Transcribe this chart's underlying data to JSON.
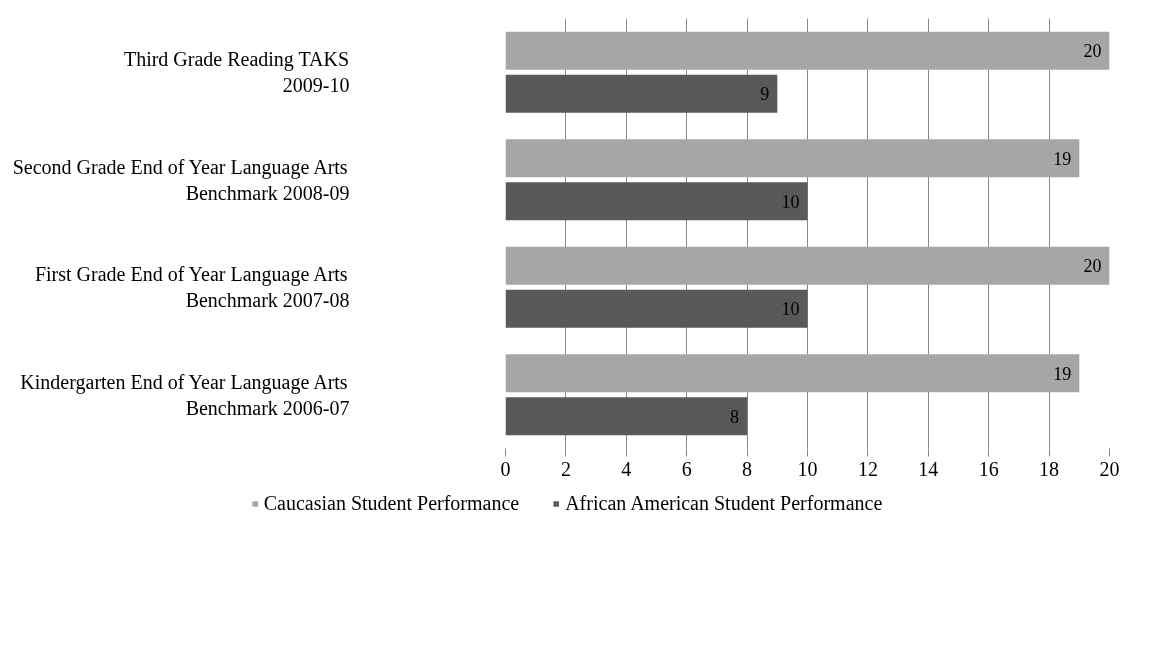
{
  "chart_data": {
    "type": "bar",
    "orientation": "horizontal",
    "categories": [
      "Third Grade Reading TAKS\n2009-10",
      "Second Grade End of Year Language Arts\nBenchmark 2008-09",
      "First Grade End of Year Language Arts\nBenchmark 2007-08",
      "Kindergarten End of Year Language Arts\nBenchmark 2006-07"
    ],
    "series": [
      {
        "name": "Caucasian Student Performance",
        "color": "#a6a6a6",
        "values": [
          20,
          19,
          20,
          19
        ]
      },
      {
        "name": "African American Student Performance",
        "color": "#595959",
        "values": [
          9,
          10,
          10,
          8
        ]
      }
    ],
    "xlim": [
      0,
      20
    ],
    "xticks": [
      0,
      2,
      4,
      6,
      8,
      10,
      12,
      14,
      16,
      18,
      20
    ],
    "grid": "x",
    "legend": "bottom",
    "data_labels": true
  }
}
